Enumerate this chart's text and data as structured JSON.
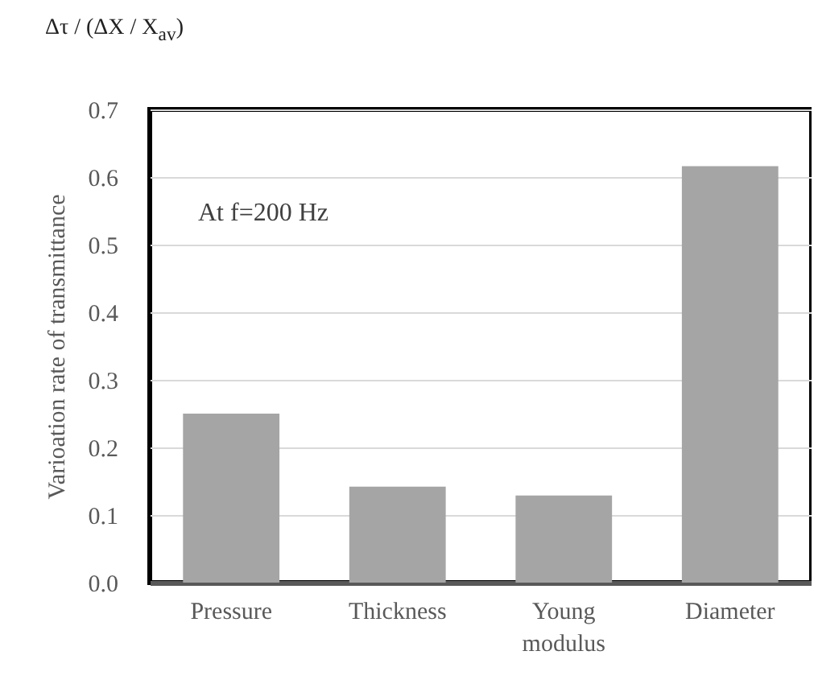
{
  "chart_data": {
    "type": "bar",
    "ylabel": "Varioation rate of transmittance",
    "annotations": [
      "At f=200 Hz",
      "Δτ / (ΔX / X$_{av}$)"
    ],
    "categories": [
      "Pressure",
      "Thickness",
      "Young modulus",
      "Diameter"
    ],
    "values": [
      0.25,
      0.142,
      0.129,
      0.616
    ],
    "color": "#a5a5a5",
    "ylim": [
      0,
      0.7
    ],
    "yticks": [
      {
        "value": 0,
        "label": "0.0"
      },
      {
        "value": 0.1,
        "label": "0.1"
      },
      {
        "value": 0.2,
        "label": "0.2"
      },
      {
        "value": 0.3,
        "label": "0.3"
      },
      {
        "value": 0.4,
        "label": "0.4"
      },
      {
        "value": 0.5,
        "label": "0.5"
      },
      {
        "value": 0.6,
        "label": "0.6"
      },
      {
        "value": 0.7,
        "label": "0.7"
      }
    ],
    "grid": true
  }
}
